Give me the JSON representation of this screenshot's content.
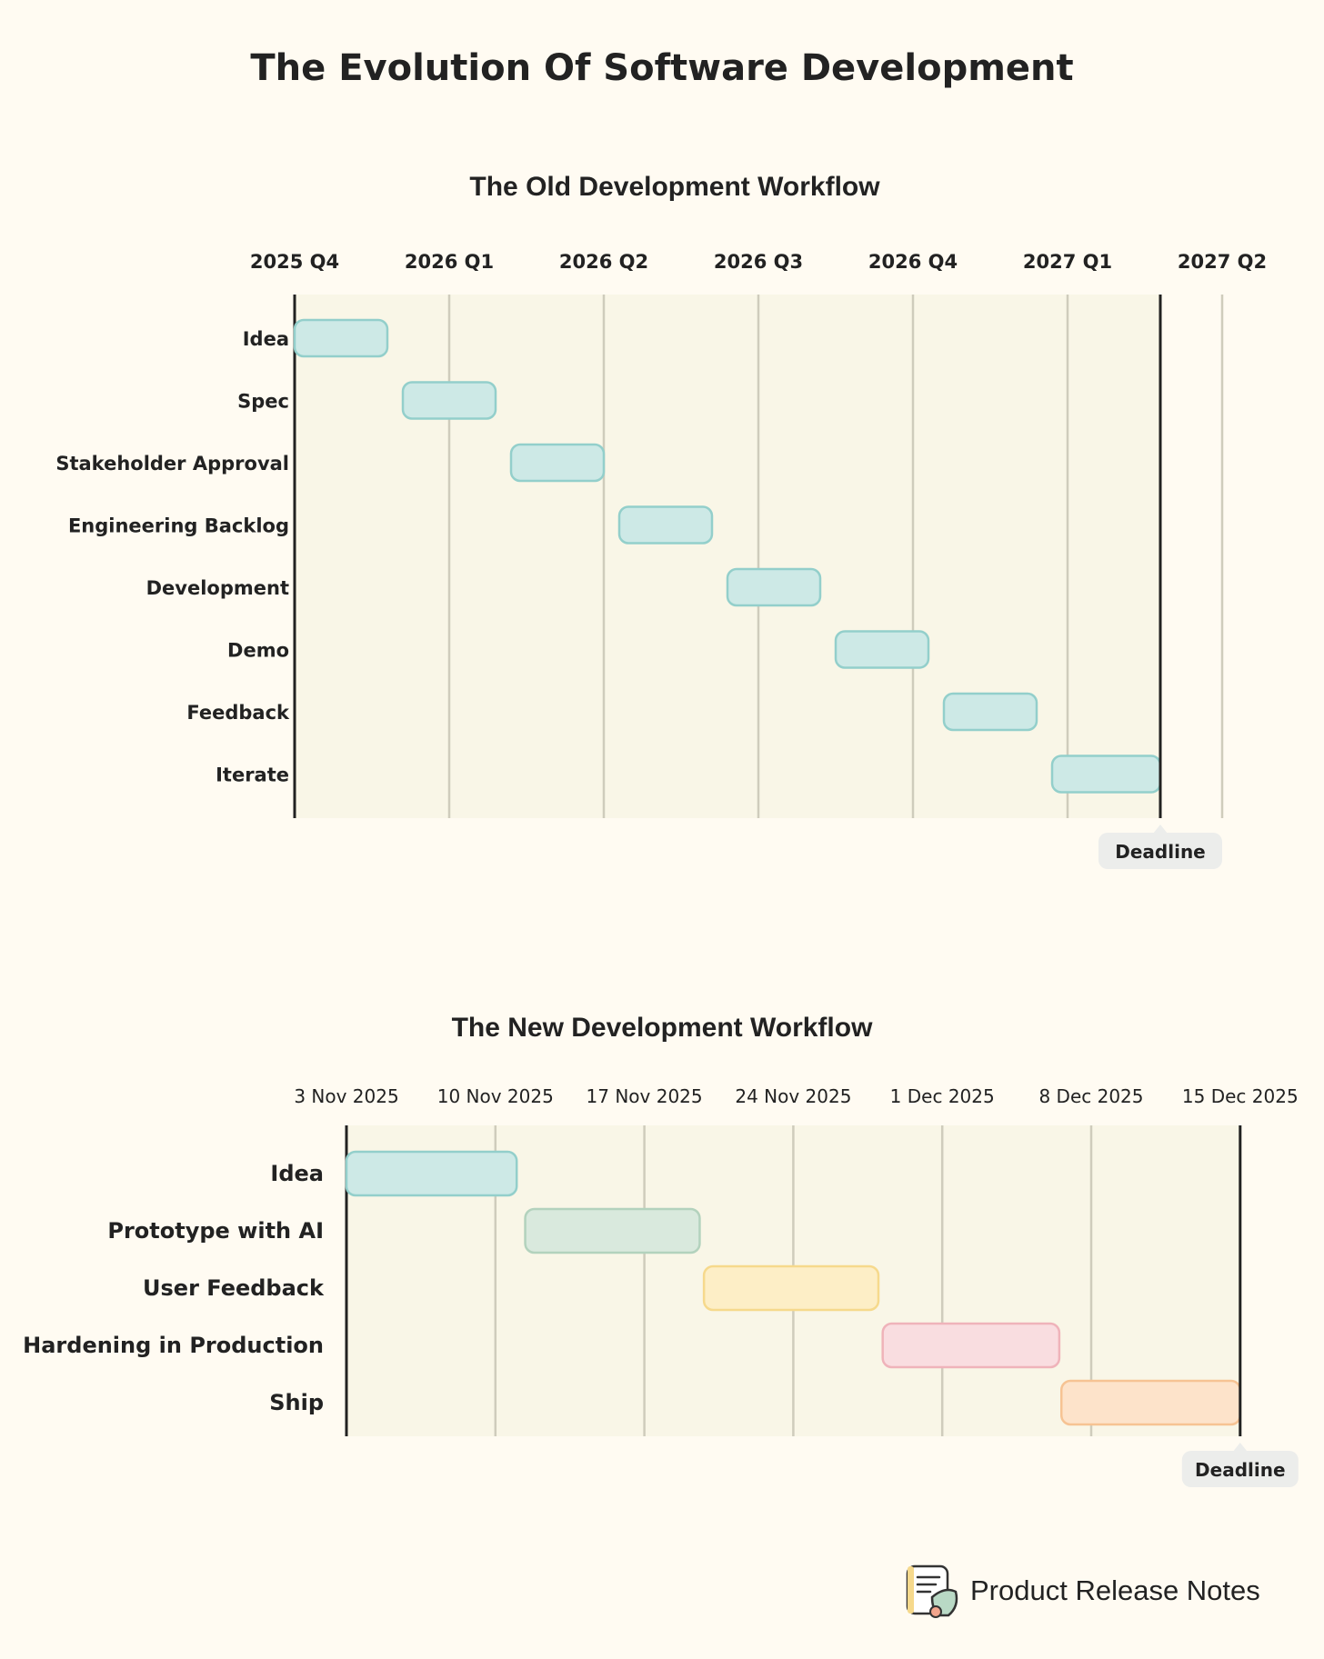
{
  "title": "The Evolution Of Software Development",
  "chart_data": [
    {
      "type": "gantt",
      "title": "The Old Development Workflow",
      "x_ticks": [
        "2025 Q4",
        "2026 Q1",
        "2026 Q2",
        "2026 Q3",
        "2026 Q4",
        "2027 Q1",
        "2027 Q2"
      ],
      "tasks": [
        {
          "label": "Idea",
          "start": 0.0,
          "end": 0.6
        },
        {
          "label": "Spec",
          "start": 0.7,
          "end": 1.3
        },
        {
          "label": "Stakeholder Approval",
          "start": 1.4,
          "end": 2.0
        },
        {
          "label": "Engineering Backlog",
          "start": 2.1,
          "end": 2.7
        },
        {
          "label": "Development",
          "start": 2.8,
          "end": 3.4
        },
        {
          "label": "Demo",
          "start": 3.5,
          "end": 4.1
        },
        {
          "label": "Feedback",
          "start": 4.2,
          "end": 4.8
        },
        {
          "label": "Iterate",
          "start": 4.9,
          "end": 5.6
        }
      ],
      "x_unit": "quarters since 2025 Q4",
      "deadline": {
        "label": "Deadline",
        "value": 5.6
      },
      "colors": {
        "bar_fill": "#cde9e6",
        "bar_stroke": "#93cfcb"
      }
    },
    {
      "type": "gantt",
      "title": "The New Development Workflow",
      "x_ticks": [
        "3 Nov 2025",
        "10 Nov 2025",
        "17 Nov 2025",
        "24 Nov 2025",
        "1 Dec 2025",
        "8 Dec 2025",
        "15 Dec 2025"
      ],
      "tasks": [
        {
          "label": "Idea",
          "start": 0,
          "end": 8,
          "fill": "#cde9e6",
          "stroke": "#93cfcb"
        },
        {
          "label": "Prototype with AI",
          "start": 8.4,
          "end": 16.6,
          "fill": "#d9e9dd",
          "stroke": "#b3d2bd"
        },
        {
          "label": "User Feedback",
          "start": 16.8,
          "end": 25,
          "fill": "#fdeec6",
          "stroke": "#f6d98c"
        },
        {
          "label": "Hardening in Production",
          "start": 25.2,
          "end": 33.5,
          "fill": "#f9dde0",
          "stroke": "#efb3ba"
        },
        {
          "label": "Ship",
          "start": 33.6,
          "end": 42,
          "fill": "#fde3ca",
          "stroke": "#f6c393"
        }
      ],
      "x_unit": "days since 3 Nov 2025",
      "deadline": {
        "label": "Deadline",
        "value": 42
      }
    }
  ],
  "brand": {
    "name": "Product Release Notes"
  }
}
